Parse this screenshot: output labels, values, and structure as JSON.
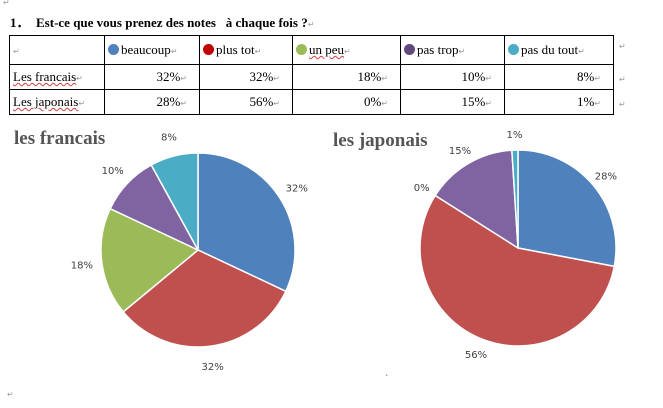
{
  "question": {
    "number": "1．",
    "text": "Est-ce que vous prenez des notes   à chaque fois ?"
  },
  "table": {
    "header_blank": "",
    "categories": [
      {
        "label": "beaucoup",
        "color": "#4F81BD",
        "underline": false
      },
      {
        "label": "plus tot",
        "color": "#C00000",
        "underline": false
      },
      {
        "label": "un peu",
        "color": "#9BBB59",
        "underline": true
      },
      {
        "label": "pas trop",
        "color": "#604A7B",
        "underline": false
      },
      {
        "label": "pas du tout",
        "color": "#4BACC6",
        "underline": false
      }
    ],
    "rows": [
      {
        "label": "Les francais",
        "values": [
          "32%",
          "32%",
          "18%",
          "10%",
          "8%"
        ]
      },
      {
        "label": "Les japonais",
        "values": [
          "28%",
          "56%",
          "0%",
          "15%",
          "1%"
        ]
      }
    ]
  },
  "chart_data": [
    {
      "type": "pie",
      "title": "les francais",
      "categories": [
        "beaucoup",
        "plus tot",
        "un peu",
        "pas trop",
        "pas du tout"
      ],
      "values": [
        32,
        32,
        18,
        10,
        8
      ],
      "labels": [
        "32%",
        "32%",
        "18%",
        "10%",
        "8%"
      ],
      "colors": [
        "#4F81BD",
        "#C0504D",
        "#9BBB59",
        "#8064A2",
        "#4BACC6"
      ]
    },
    {
      "type": "pie",
      "title": "les japonais",
      "categories": [
        "beaucoup",
        "plus tot",
        "un peu",
        "pas trop",
        "pas du tout"
      ],
      "values": [
        28,
        56,
        0,
        15,
        1
      ],
      "labels": [
        "28%",
        "56%",
        "0%",
        "15%",
        "1%"
      ],
      "colors": [
        "#4F81BD",
        "#C0504D",
        "#9BBB59",
        "#8064A2",
        "#4BACC6"
      ]
    }
  ]
}
